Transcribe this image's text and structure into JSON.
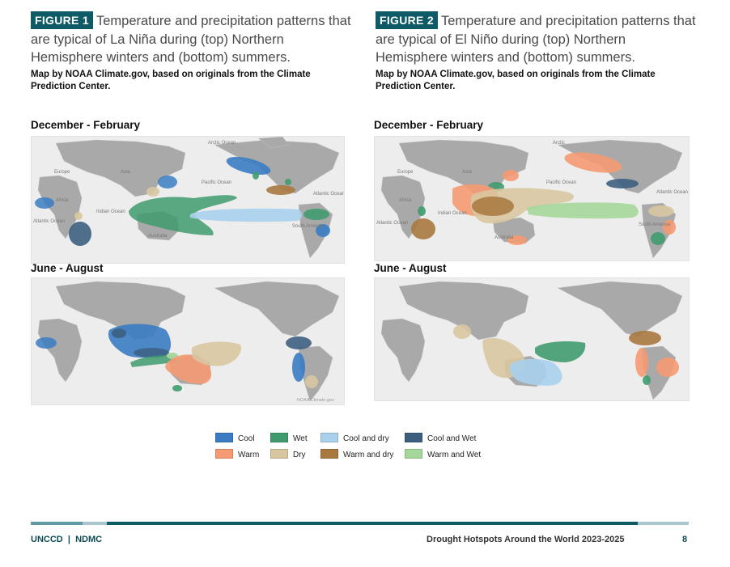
{
  "figure1": {
    "label": "FIGURE 1",
    "caption": "Temperature and precipitation patterns that are typical of La Niña during (top) Northern Hemisphere winters and (bottom) summers.",
    "credit": "Map by NOAA Climate.gov, based on originals from the Climate Prediction Center.",
    "season_top": "December - February",
    "season_bottom": "June - August",
    "watermark": "NOAA Climate.gov"
  },
  "figure2": {
    "label": "FIGURE 2",
    "caption": "Temperature and precipitation patterns that are typical of El Niño during (top) Northern Hemisphere winters and (bottom) summers.",
    "credit": "Map by NOAA Climate.gov, based on originals from the Climate Prediction Center.",
    "season_top": "December - February",
    "season_bottom": "June - August"
  },
  "map_labels": {
    "arctic_ocean": "Arctic Ocean",
    "arctic": "Arctic",
    "europe": "Europe",
    "asia": "Asia",
    "africa": "Africa",
    "pacific_ocean": "Pacific Ocean",
    "atlantic_ocean": "Atlantic Ocean",
    "indian_ocean": "Indian Ocean",
    "australia": "Australia",
    "south_america": "South America"
  },
  "legend": [
    {
      "label": "Cool",
      "color": "#3a7cc2"
    },
    {
      "label": "Wet",
      "color": "#3f9b6e"
    },
    {
      "label": "Cool and dry",
      "color": "#a9d0ec"
    },
    {
      "label": "Cool and Wet",
      "color": "#3c5f80"
    },
    {
      "label": "Warm",
      "color": "#f59a72"
    },
    {
      "label": "Dry",
      "color": "#d8c6a0"
    },
    {
      "label": "Warm and dry",
      "color": "#a8783e"
    },
    {
      "label": "Warm and Wet",
      "color": "#a5d79a"
    }
  ],
  "footer": {
    "org": "UNCCD",
    "separator": "|",
    "org2": "NDMC",
    "title": "Drought Hotspots Around the World 2023-2025",
    "page": "8"
  }
}
